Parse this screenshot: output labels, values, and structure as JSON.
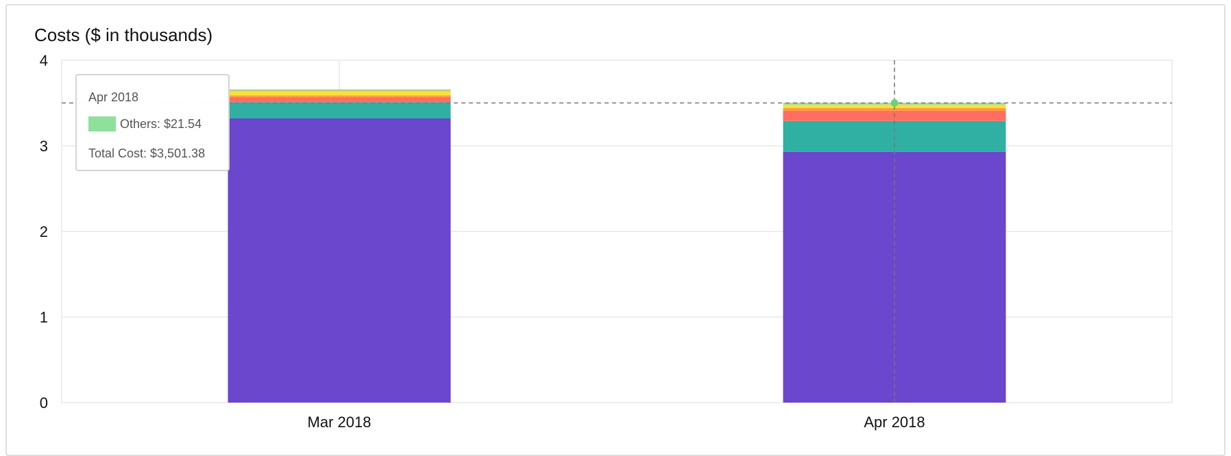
{
  "chart_data": {
    "type": "bar",
    "stacked": true,
    "title": "Costs ($ in thousands)",
    "xlabel": "",
    "ylabel": "",
    "categories": [
      "Mar 2018",
      "Apr 2018"
    ],
    "ylim": [
      0,
      4
    ],
    "yticks": [
      "0",
      "1",
      "2",
      "3",
      "4"
    ],
    "grid": true,
    "series": [
      {
        "color": "#6a47cd",
        "values": [
          3.32,
          2.93
        ]
      },
      {
        "color": "#2fb0a3",
        "values": [
          0.19,
          0.36
        ]
      },
      {
        "color": "#ff6f61",
        "values": [
          0.06,
          0.12
        ]
      },
      {
        "color": "#ff9a3c",
        "values": [
          0.02,
          0.03
        ]
      },
      {
        "color": "#fbdf3a",
        "values": [
          0.05,
          0.04
        ]
      },
      {
        "color": "#c2c25f",
        "values": [
          0.01,
          0.002
        ]
      },
      {
        "name": "Others",
        "color": "#8fe09a",
        "values": [
          0.01,
          0.02154
        ]
      }
    ],
    "hover": {
      "category_index": 1,
      "y": 3.50138,
      "color": "#6ed36e"
    }
  },
  "tooltip": {
    "title": "Apr 2018",
    "series_label": "Others: $21.54",
    "swatch_color": "#8fe09a",
    "total_label": "Total Cost: $3,501.38"
  }
}
